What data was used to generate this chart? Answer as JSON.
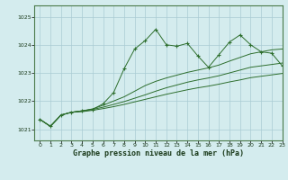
{
  "xlabel": "Graphe pression niveau de la mer (hPa)",
  "ylabel": "",
  "xlim": [
    -0.5,
    23
  ],
  "ylim": [
    1020.6,
    1025.4
  ],
  "yticks": [
    1021,
    1022,
    1023,
    1024,
    1025
  ],
  "xticks": [
    0,
    1,
    2,
    3,
    4,
    5,
    6,
    7,
    8,
    9,
    10,
    11,
    12,
    13,
    14,
    15,
    16,
    17,
    18,
    19,
    20,
    21,
    22,
    23
  ],
  "bg_color": "#d4ecee",
  "grid_color": "#aaccd4",
  "line_color": "#2d6e2d",
  "axis_color": "#4a7a4a",
  "lines": [
    {
      "x": [
        0,
        1,
        2,
        3,
        4,
        5,
        6,
        7,
        8,
        9,
        10,
        11,
        12,
        13,
        14,
        15,
        16,
        17,
        18,
        19,
        20,
        21,
        22,
        23
      ],
      "y": [
        1021.35,
        1021.1,
        1021.5,
        1021.6,
        1021.65,
        1021.7,
        1021.9,
        1022.3,
        1023.15,
        1023.85,
        1024.15,
        1024.55,
        1024.0,
        1023.95,
        1024.05,
        1023.6,
        1023.2,
        1023.65,
        1024.1,
        1024.35,
        1024.0,
        1023.75,
        1023.7,
        1023.25
      ],
      "marker": true
    },
    {
      "x": [
        0,
        1,
        2,
        3,
        4,
        5,
        6,
        7,
        8,
        9,
        10,
        11,
        12,
        13,
        14,
        15,
        16,
        17,
        18,
        19,
        20,
        21,
        22,
        23
      ],
      "y": [
        1021.35,
        1021.1,
        1021.5,
        1021.6,
        1021.65,
        1021.72,
        1021.85,
        1022.0,
        1022.15,
        1022.35,
        1022.55,
        1022.7,
        1022.82,
        1022.92,
        1023.02,
        1023.1,
        1023.18,
        1023.28,
        1023.42,
        1023.55,
        1023.68,
        1023.75,
        1023.82,
        1023.85
      ],
      "marker": false
    },
    {
      "x": [
        0,
        1,
        2,
        3,
        4,
        5,
        6,
        7,
        8,
        9,
        10,
        11,
        12,
        13,
        14,
        15,
        16,
        17,
        18,
        19,
        20,
        21,
        22,
        23
      ],
      "y": [
        1021.35,
        1021.1,
        1021.5,
        1021.6,
        1021.65,
        1021.7,
        1021.78,
        1021.88,
        1021.98,
        1022.1,
        1022.22,
        1022.35,
        1022.47,
        1022.57,
        1022.67,
        1022.75,
        1022.82,
        1022.9,
        1023.0,
        1023.1,
        1023.2,
        1023.25,
        1023.3,
        1023.35
      ],
      "marker": false
    },
    {
      "x": [
        0,
        1,
        2,
        3,
        4,
        5,
        6,
        7,
        8,
        9,
        10,
        11,
        12,
        13,
        14,
        15,
        16,
        17,
        18,
        19,
        20,
        21,
        22,
        23
      ],
      "y": [
        1021.35,
        1021.1,
        1021.5,
        1021.6,
        1021.62,
        1021.67,
        1021.73,
        1021.8,
        1021.88,
        1021.97,
        1022.06,
        1022.15,
        1022.24,
        1022.32,
        1022.4,
        1022.47,
        1022.53,
        1022.6,
        1022.68,
        1022.75,
        1022.83,
        1022.88,
        1022.93,
        1022.98
      ],
      "marker": false
    }
  ]
}
